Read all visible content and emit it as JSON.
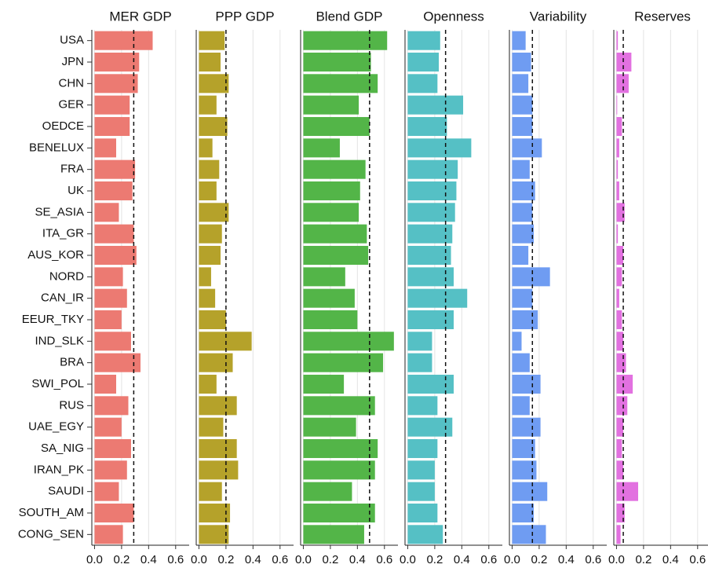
{
  "chart_data": {
    "type": "bar",
    "categories": [
      "USA",
      "JPN",
      "CHN",
      "GER",
      "OEDCE",
      "BENELUX",
      "FRA",
      "UK",
      "SE_ASIA",
      "ITA_GR",
      "AUS_KOR",
      "NORD",
      "CAN_IR",
      "EEUR_TKY",
      "IND_SLK",
      "BRA",
      "SWI_POL",
      "RUS",
      "UAE_EGY",
      "SA_NIG",
      "IRAN_PK",
      "SAUDI",
      "SOUTH_AM",
      "CONG_SEN"
    ],
    "series": [
      {
        "name": "MER GDP",
        "color": "#ec7a72",
        "reference_line": 0.29,
        "values": [
          0.43,
          0.33,
          0.32,
          0.26,
          0.26,
          0.16,
          0.3,
          0.28,
          0.18,
          0.29,
          0.31,
          0.21,
          0.24,
          0.2,
          0.27,
          0.34,
          0.16,
          0.25,
          0.2,
          0.27,
          0.24,
          0.18,
          0.29,
          0.21
        ]
      },
      {
        "name": "PPP GDP",
        "color": "#b5a22a",
        "reference_line": 0.2,
        "values": [
          0.19,
          0.16,
          0.22,
          0.13,
          0.21,
          0.1,
          0.15,
          0.13,
          0.22,
          0.17,
          0.16,
          0.09,
          0.12,
          0.2,
          0.39,
          0.25,
          0.13,
          0.28,
          0.18,
          0.28,
          0.29,
          0.17,
          0.23,
          0.22
        ]
      },
      {
        "name": "Blend GDP",
        "color": "#53b548",
        "reference_line": 0.49,
        "values": [
          0.62,
          0.5,
          0.55,
          0.41,
          0.49,
          0.27,
          0.46,
          0.42,
          0.41,
          0.47,
          0.48,
          0.31,
          0.38,
          0.4,
          0.67,
          0.59,
          0.3,
          0.53,
          0.39,
          0.55,
          0.53,
          0.36,
          0.53,
          0.45
        ]
      },
      {
        "name": "Openness",
        "color": "#55c0c5",
        "reference_line": 0.28,
        "values": [
          0.24,
          0.23,
          0.22,
          0.41,
          0.29,
          0.47,
          0.37,
          0.36,
          0.35,
          0.33,
          0.32,
          0.34,
          0.44,
          0.34,
          0.18,
          0.18,
          0.34,
          0.22,
          0.33,
          0.22,
          0.2,
          0.2,
          0.22,
          0.26
        ]
      },
      {
        "name": "Variability",
        "color": "#6f9cf2",
        "reference_line": 0.15,
        "values": [
          0.1,
          0.14,
          0.12,
          0.15,
          0.15,
          0.22,
          0.13,
          0.17,
          0.15,
          0.16,
          0.12,
          0.28,
          0.15,
          0.19,
          0.07,
          0.13,
          0.21,
          0.13,
          0.21,
          0.17,
          0.18,
          0.26,
          0.16,
          0.25
        ]
      },
      {
        "name": "Reserves",
        "color": "#e271e0",
        "reference_line": 0.05,
        "values": [
          0.01,
          0.11,
          0.09,
          0.005,
          0.04,
          0.02,
          0.01,
          0.02,
          0.06,
          0.01,
          0.05,
          0.04,
          0.02,
          0.04,
          0.05,
          0.07,
          0.12,
          0.08,
          0.05,
          0.04,
          0.05,
          0.16,
          0.06,
          0.03
        ]
      }
    ],
    "xlim": [
      -0.02,
      0.7
    ],
    "xticks": [
      {
        "value": 0,
        "label": "0.0"
      },
      0.2,
      0.4,
      0.6
    ],
    "grid": true
  }
}
